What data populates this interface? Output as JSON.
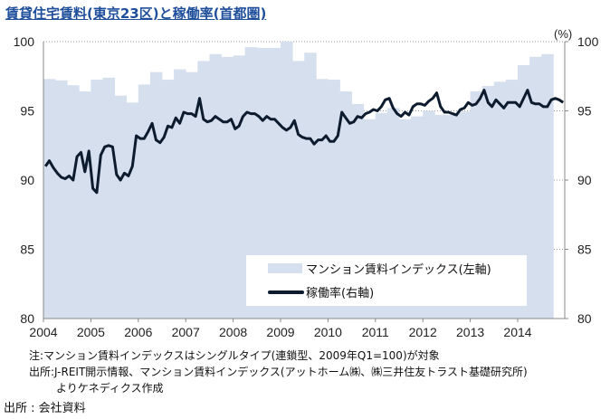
{
  "title": "賃貸住宅賃料(東京23区)と稼働率(首都圏)",
  "chart_data": {
    "type": "bar+line",
    "title": "賃貸住宅賃料(東京23区)と稼働率(首都圏)",
    "left_axis": {
      "ylim": [
        80,
        100
      ],
      "ticks": [
        "80",
        "85",
        "90",
        "95",
        "100"
      ]
    },
    "right_axis": {
      "ylim": [
        80,
        100
      ],
      "ticks": [
        "80",
        "85",
        "90",
        "95",
        "100"
      ],
      "unit": "(%)"
    },
    "x_ticks": [
      "2004",
      "2005",
      "2006",
      "2007",
      "2008",
      "2009",
      "2010",
      "2011",
      "2012",
      "2013",
      "2014"
    ],
    "grid": "dotted horizontal",
    "legend_position": "bottom-right",
    "colors": {
      "bars": "#d5dfee",
      "line": "#0d1b2e",
      "title": "#1f4e9a"
    },
    "series": [
      {
        "name": "マンション賃料インデックス(左軸)",
        "type": "bar",
        "frequency": "quarterly from 2004Q1",
        "values": [
          97.3,
          97.2,
          96.85,
          96.4,
          97.25,
          97.4,
          96.1,
          95.6,
          96.9,
          97.8,
          97.25,
          98.0,
          97.8,
          98.6,
          99.1,
          98.9,
          99.0,
          99.6,
          99.55,
          99.55,
          100,
          98.6,
          99.2,
          97.3,
          97.25,
          96.4,
          95.5,
          94.4,
          94.85,
          95.2,
          94.4,
          94.6,
          95.0,
          94.7,
          94.7,
          94.95,
          96.4,
          96.8,
          97.1,
          97.25,
          98.3,
          98.9,
          99.1
        ]
      },
      {
        "name": "稼働率(右軸)",
        "type": "line",
        "frequency": "monthly from 2004-01",
        "values": [
          91.0,
          91.4,
          90.9,
          90.5,
          90.2,
          90.1,
          90.3,
          90.0,
          91.7,
          92.0,
          90.6,
          92.1,
          89.4,
          89.1,
          91.8,
          92.4,
          92.5,
          92.4,
          90.4,
          90.0,
          90.5,
          90.3,
          91.0,
          93.2,
          93.0,
          93.0,
          93.5,
          94.1,
          92.9,
          92.7,
          93.1,
          93.9,
          93.8,
          94.5,
          94.1,
          94.9,
          94.8,
          94.8,
          94.6,
          95.9,
          94.4,
          94.2,
          94.3,
          94.6,
          94.4,
          94.2,
          94.2,
          94.4,
          93.7,
          93.9,
          94.6,
          94.9,
          94.8,
          94.8,
          94.6,
          94.3,
          94.6,
          94.4,
          94.4,
          94.1,
          93.8,
          93.6,
          93.8,
          94.3,
          93.3,
          93.1,
          93.0,
          93.0,
          92.6,
          92.9,
          92.9,
          93.2,
          92.8,
          92.8,
          93.2,
          94.9,
          94.5,
          94.1,
          94.2,
          94.6,
          94.5,
          94.8,
          94.9,
          95.1,
          95.0,
          95.3,
          95.8,
          95.9,
          95.2,
          94.8,
          94.6,
          94.9,
          94.7,
          95.3,
          95.5,
          95.5,
          95.4,
          95.7,
          95.9,
          96.3,
          95.3,
          94.9,
          94.9,
          94.8,
          94.7,
          95.1,
          95.2,
          95.6,
          95.4,
          95.5,
          95.9,
          96.5,
          95.6,
          95.3,
          95.8,
          95.5,
          95.2,
          95.6,
          95.6,
          95.6,
          95.3,
          95.9,
          96.5,
          95.6,
          95.5,
          95.5,
          95.3,
          95.3,
          95.8,
          95.9,
          95.8,
          95.6
        ]
      }
    ]
  },
  "notes": [
    "注:マンション賃料インデックスはシングルタイプ(連鎖型、2009年Q1=100)が対象",
    "出所:J-REIT開示情報、マンション賃料インデックス(アットホーム㈱、㈱三井住友トラスト基礎研究所)",
    "よりケネディクス作成"
  ],
  "source": "出所 : 会社資料"
}
